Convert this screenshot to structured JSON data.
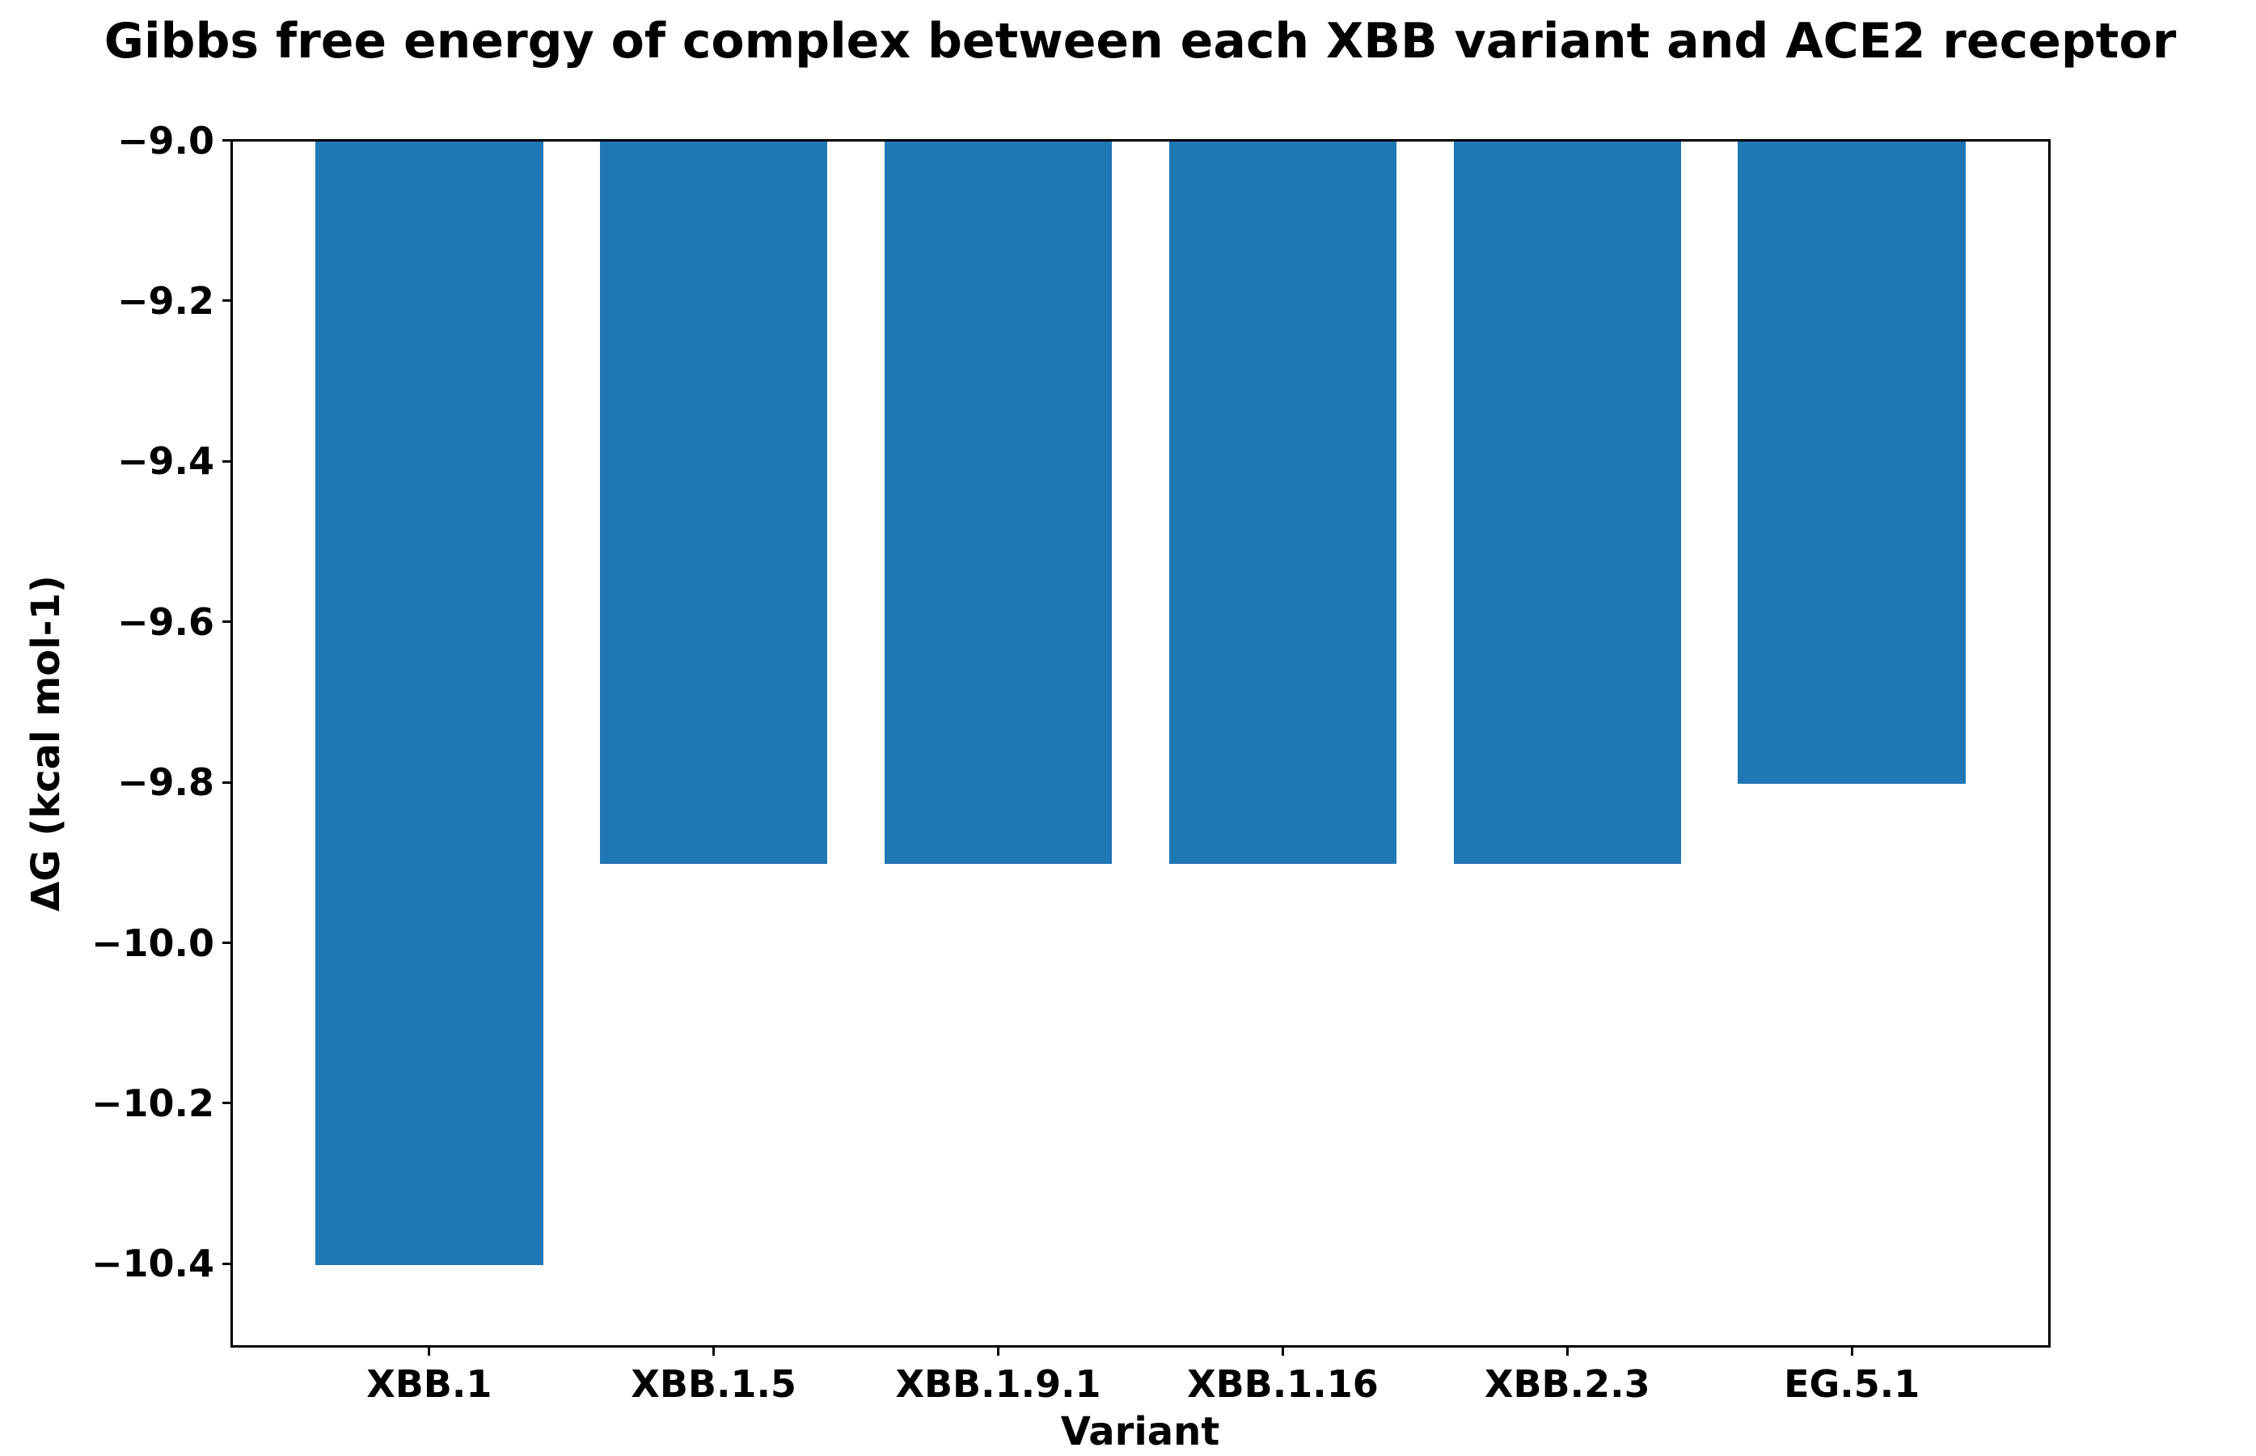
{
  "figure": {
    "title": "Gibbs free energy of complex between each XBB variant and ACE2 receptor"
  },
  "chart_data": {
    "type": "bar",
    "title": "Gibbs free energy of complex between each XBB variant and ACE2 receptor",
    "xlabel": "Variant",
    "ylabel": "ΔG (kcal mol-1)",
    "categories": [
      "XBB.1",
      "XBB.1.5",
      "XBB.1.9.1",
      "XBB.1.16",
      "XBB.2.3",
      "EG.5.1"
    ],
    "values": [
      -10.4,
      -9.9,
      -9.9,
      -9.9,
      -9.9,
      -9.8
    ],
    "ylim": [
      -10.5,
      -9.0
    ],
    "xlim": [
      -0.69,
      5.69
    ],
    "yticks": [
      -9.0,
      -9.2,
      -9.4,
      -9.6,
      -9.8,
      -10.0,
      -10.2,
      -10.4
    ],
    "ytick_labels": [
      "−9.0",
      "−9.2",
      "−9.4",
      "−9.6",
      "−9.8",
      "−10.0",
      "−10.2",
      "−10.4"
    ],
    "bar_color": "#1f77b4",
    "bar_width_fraction": 0.8,
    "grid": false,
    "legend": null
  }
}
